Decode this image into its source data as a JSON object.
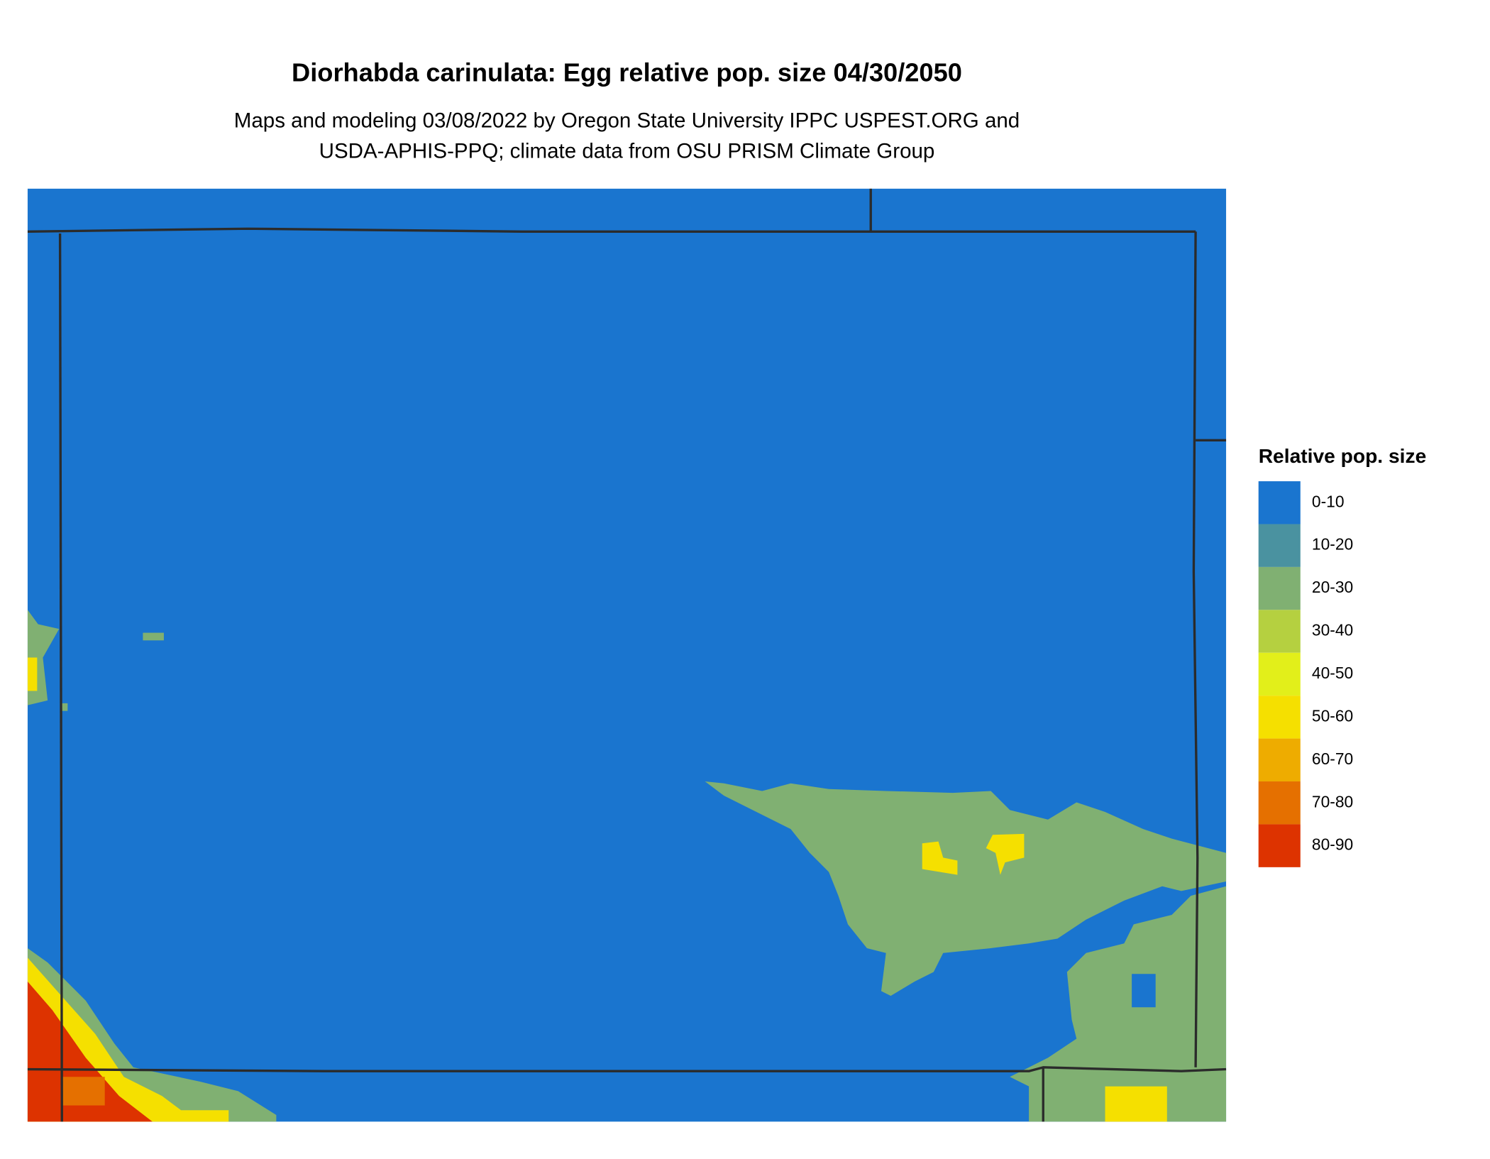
{
  "title": "Diorhabda carinulata: Egg relative pop. size 04/30/2050",
  "subtitle": [
    "Maps and modeling 03/08/2022 by Oregon State University IPPC USPEST.ORG and",
    "USDA-APHIS-PPQ; climate data from OSU PRISM Climate Group"
  ],
  "legend": {
    "title": "Relative pop. size",
    "items": [
      {
        "label": "0-10",
        "color": "#1a75cf"
      },
      {
        "label": "10-20",
        "color": "#4a92a0"
      },
      {
        "label": "20-30",
        "color": "#80b072"
      },
      {
        "label": "30-40",
        "color": "#b5d040"
      },
      {
        "label": "40-50",
        "color": "#e2ef1a"
      },
      {
        "label": "50-60",
        "color": "#f5e000"
      },
      {
        "label": "60-70",
        "color": "#eeac00"
      },
      {
        "label": "70-80",
        "color": "#e57000"
      },
      {
        "label": "80-90",
        "color": "#dd3300"
      }
    ]
  }
}
